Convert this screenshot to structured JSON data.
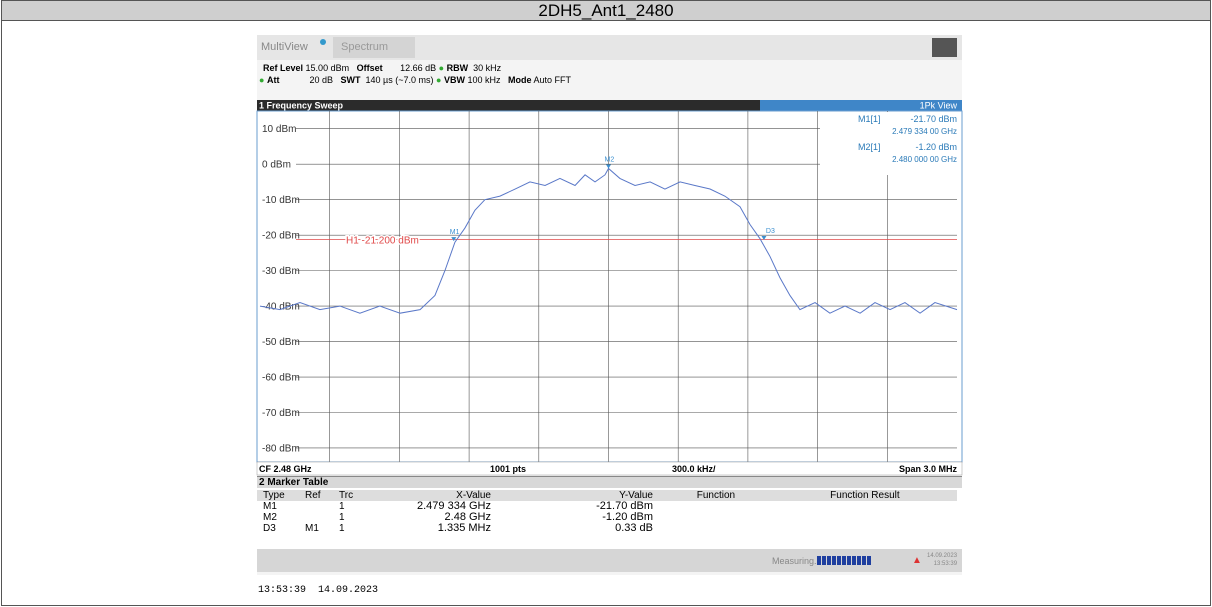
{
  "header": {
    "title": "2DH5_Ant1_2480"
  },
  "instrument": {
    "tabs": [
      "MultiView",
      "Spectrum"
    ],
    "settings_row1": [
      "Ref Level",
      "15.00 dBm",
      "Offset",
      "12.66 dB",
      "RBW",
      "30 kHz"
    ],
    "settings_row2": [
      "Att",
      "20 dB",
      "SWT",
      "140 µs (~7.0 ms)",
      "VBW",
      "100 kHz",
      "Mode",
      "Auto FFT"
    ]
  },
  "chart_data": {
    "type": "line",
    "title": "1 Frequency Sweep",
    "view": "1Pk View",
    "color": "#5a78c8",
    "ylim": [
      -85,
      15
    ],
    "yticks": [
      {
        "value": 10,
        "label": "10 dBm"
      },
      {
        "value": 0,
        "label": "0 dBm"
      },
      {
        "value": -10,
        "label": "-10 dBm"
      },
      {
        "value": -20,
        "label": "-20 dBm"
      },
      {
        "value": -30,
        "label": "-30 dBm"
      },
      {
        "value": -40,
        "label": "-40 dBm"
      },
      {
        "value": -50,
        "label": "-50 dBm"
      },
      {
        "value": -60,
        "label": "-60 dBm"
      },
      {
        "value": -70,
        "label": "-70 dBm"
      },
      {
        "value": -80,
        "label": "-80 dBm"
      }
    ],
    "xlim": [
      -1.5,
      1.5
    ],
    "x": [
      -1.5,
      -1.414,
      -1.328,
      -1.242,
      -1.156,
      -1.07,
      -0.984,
      -0.897,
      -0.811,
      -0.747,
      -0.704,
      -0.661,
      -0.618,
      -0.575,
      -0.532,
      -0.467,
      -0.402,
      -0.338,
      -0.273,
      -0.209,
      -0.144,
      -0.101,
      -0.058,
      -0.015,
      0,
      0.049,
      0.114,
      0.179,
      0.243,
      0.308,
      0.372,
      0.437,
      0.501,
      0.566,
      0.609,
      0.652,
      0.695,
      0.738,
      0.781,
      0.824,
      0.889,
      0.953,
      1.018,
      1.083,
      1.147,
      1.212,
      1.276,
      1.341,
      1.405,
      1.5
    ],
    "values": [
      -40,
      -41,
      -39,
      -41,
      -40,
      -42,
      -40,
      -42,
      -41,
      -37,
      -30,
      -22,
      -18,
      -13,
      -10,
      -9,
      -7,
      -5,
      -6,
      -4,
      -6,
      -3,
      -5,
      -3,
      -1.2,
      -4,
      -6,
      -5,
      -7,
      -5,
      -6,
      -7,
      -9,
      -12,
      -17,
      -21,
      -26,
      -32,
      -37,
      -41,
      -39,
      -42,
      -40,
      -42,
      -39,
      -41,
      -39,
      -42,
      -39,
      -41
    ],
    "threshold": {
      "value": -21.2,
      "label": "H1 -21.200 dBm",
      "color": "#e04848"
    },
    "markers": [
      {
        "label": "M1",
        "x": -0.666,
        "y": -21.7
      },
      {
        "label": "M2",
        "x": 0,
        "y": -1.2
      },
      {
        "label": "D3",
        "x": 0.669,
        "y": -21.37
      }
    ],
    "marker_info": [
      {
        "name": "M1[1]",
        "y": "-21.70 dBm",
        "x": "2.479 334 00 GHz"
      },
      {
        "name": "M2[1]",
        "y": "-1.20 dBm",
        "x": "2.480 000 00 GHz"
      }
    ],
    "footer": [
      "CF 2.48 GHz",
      "1001 pts",
      "300.0 kHz/",
      "Span 3.0 MHz"
    ]
  },
  "marker_table": {
    "title": "2 Marker Table",
    "columns": [
      "Type",
      "Ref",
      "Trc",
      "X-Value",
      "Y-Value",
      "Function",
      "Function Result"
    ],
    "rows": [
      {
        "type": "M1",
        "trc": "1",
        "x": "2.479 334 GHz",
        "y": "-21.70 dBm"
      },
      {
        "type": "M2",
        "trc": "1",
        "x": "2.48 GHz",
        "y": "-1.20 dBm"
      },
      {
        "type": "D3",
        "ref": "M1",
        "trc": "1",
        "x": "1.335 MHz",
        "y": "0.33 dB"
      }
    ]
  },
  "status": {
    "text": "Measuring...",
    "date": "14.09.2023",
    "time": "13:53:39"
  },
  "timestamp": "13:53:39  14.09.2023"
}
